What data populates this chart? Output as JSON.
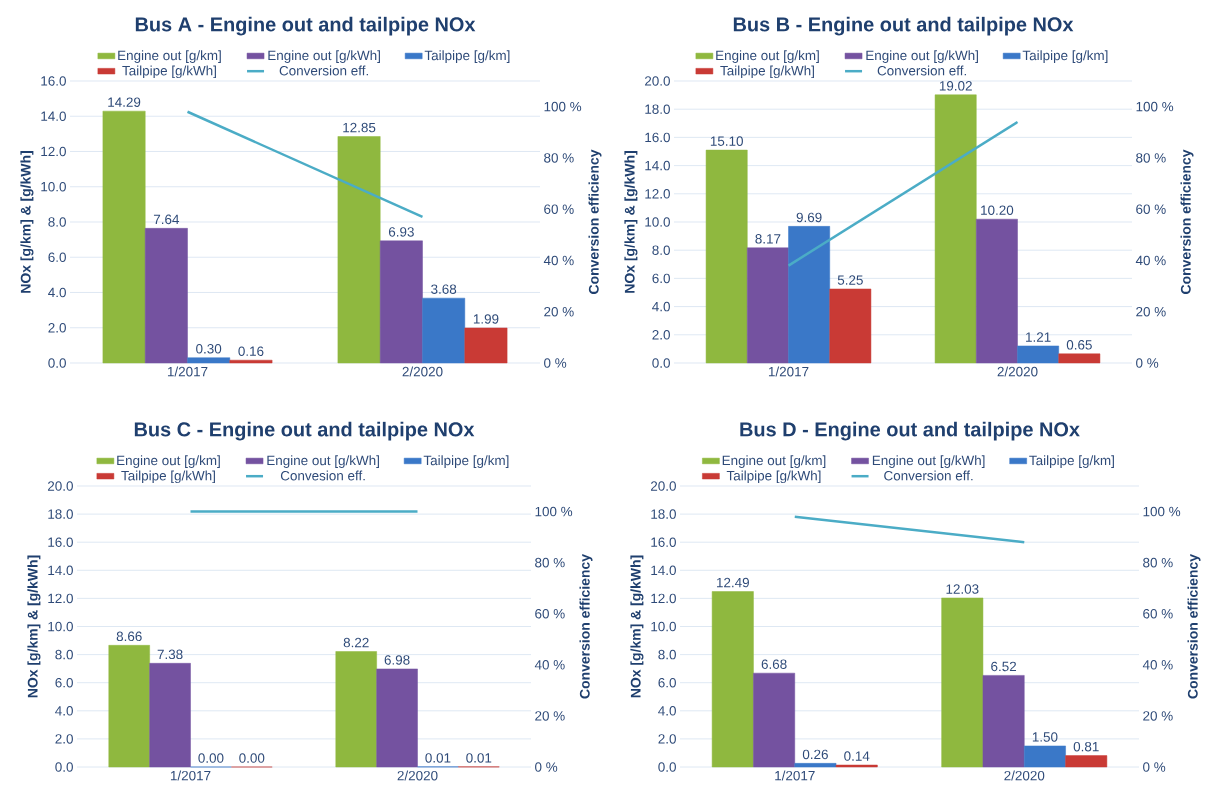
{
  "chart_data": [
    {
      "type": "bar",
      "title": "Bus A - Engine out and tailpipe NOx",
      "ylabel": "NOx [g/km] & [g/kWh]",
      "y2label": "Conversion efficiency",
      "categories": [
        "1/2017",
        "2/2020"
      ],
      "grid": "y",
      "legend": "top",
      "ylim": [
        0,
        16
      ],
      "yticks": [
        {
          "value": 0,
          "label": "0.0"
        },
        {
          "value": 2,
          "label": "2.0"
        },
        {
          "value": 4,
          "label": "4.0"
        },
        {
          "value": 6,
          "label": "6.0"
        },
        {
          "value": 8,
          "label": "8.0"
        },
        {
          "value": 10,
          "label": "10.0"
        },
        {
          "value": 12,
          "label": "12.0"
        },
        {
          "value": 14,
          "label": "14.0"
        },
        {
          "value": 16,
          "label": "16.0"
        }
      ],
      "y2lim": [
        0,
        110
      ],
      "y2ticks": [
        {
          "value": 0,
          "label": "0 %"
        },
        {
          "value": 20,
          "label": "20 %"
        },
        {
          "value": 40,
          "label": "40 %"
        },
        {
          "value": 60,
          "label": "60 %"
        },
        {
          "value": 80,
          "label": "80 %"
        },
        {
          "value": 100,
          "label": "100 %"
        }
      ],
      "series": [
        {
          "name": "Engine out [g/km]",
          "color": "#8fb83f",
          "values": [
            14.29,
            12.85
          ],
          "value_labels": [
            "14.29",
            "12.85"
          ]
        },
        {
          "name": "Engine out [g/kWh]",
          "color": "#7452a0",
          "values": [
            7.64,
            6.93
          ],
          "value_labels": [
            "7.64",
            "6.93"
          ]
        },
        {
          "name": "Tailpipe [g/km]",
          "color": "#3a78c8",
          "values": [
            0.3,
            3.68
          ],
          "value_labels": [
            "0.30",
            "3.68"
          ]
        },
        {
          "name": "Tailpipe [g/kWh]",
          "color": "#c93a35",
          "values": [
            0.16,
            1.99
          ],
          "value_labels": [
            "0.16",
            "1.99"
          ]
        },
        {
          "name": "Conversion eff.",
          "type": "line",
          "axis": "y2",
          "color": "#4bacc6",
          "values": [
            98,
            57
          ]
        }
      ]
    },
    {
      "type": "bar",
      "title": "Bus B - Engine out and tailpipe NOx",
      "ylabel": "NOx [g/km] & [g/kWh]",
      "y2label": "Conversion efficiency",
      "categories": [
        "1/2017",
        "2/2020"
      ],
      "grid": "y",
      "legend": "top",
      "ylim": [
        0,
        20
      ],
      "yticks": [
        {
          "value": 0,
          "label": "0.0"
        },
        {
          "value": 2,
          "label": "2.0"
        },
        {
          "value": 4,
          "label": "4.0"
        },
        {
          "value": 6,
          "label": "6.0"
        },
        {
          "value": 8,
          "label": "8.0"
        },
        {
          "value": 10,
          "label": "10.0"
        },
        {
          "value": 12,
          "label": "12.0"
        },
        {
          "value": 14,
          "label": "14.0"
        },
        {
          "value": 16,
          "label": "16.0"
        },
        {
          "value": 18,
          "label": "18.0"
        },
        {
          "value": 20,
          "label": "20.0"
        }
      ],
      "y2lim": [
        0,
        110
      ],
      "y2ticks": [
        {
          "value": 0,
          "label": "0 %"
        },
        {
          "value": 20,
          "label": "20 %"
        },
        {
          "value": 40,
          "label": "40 %"
        },
        {
          "value": 60,
          "label": "60 %"
        },
        {
          "value": 80,
          "label": "80 %"
        },
        {
          "value": 100,
          "label": "100 %"
        }
      ],
      "series": [
        {
          "name": "Engine out [g/km]",
          "color": "#8fb83f",
          "values": [
            15.1,
            19.02
          ],
          "value_labels": [
            "15.10",
            "19.02"
          ]
        },
        {
          "name": "Engine out [g/kWh]",
          "color": "#7452a0",
          "values": [
            8.17,
            10.2
          ],
          "value_labels": [
            "8.17",
            "10.20"
          ]
        },
        {
          "name": "Tailpipe [g/km]",
          "color": "#3a78c8",
          "values": [
            9.69,
            1.21
          ],
          "value_labels": [
            "9.69",
            "1.21"
          ]
        },
        {
          "name": "Tailpipe [g/kWh]",
          "color": "#c93a35",
          "values": [
            5.25,
            0.65
          ],
          "value_labels": [
            "5.25",
            "0.65"
          ]
        },
        {
          "name": "Conversion eff.",
          "type": "line",
          "axis": "y2",
          "color": "#4bacc6",
          "values": [
            38,
            94
          ]
        }
      ]
    },
    {
      "type": "bar",
      "title": "Bus C - Engine out and tailpipe NOx",
      "ylabel": "NOx [g/km] & [g/kWh]",
      "y2label": "Conversion efficiency",
      "categories": [
        "1/2017",
        "2/2020"
      ],
      "grid": "y",
      "legend": "top",
      "ylim": [
        0,
        20
      ],
      "yticks": [
        {
          "value": 0,
          "label": "0.0"
        },
        {
          "value": 2,
          "label": "2.0"
        },
        {
          "value": 4,
          "label": "4.0"
        },
        {
          "value": 6,
          "label": "6.0"
        },
        {
          "value": 8,
          "label": "8.0"
        },
        {
          "value": 10,
          "label": "10.0"
        },
        {
          "value": 12,
          "label": "12.0"
        },
        {
          "value": 14,
          "label": "14.0"
        },
        {
          "value": 16,
          "label": "16.0"
        },
        {
          "value": 18,
          "label": "18.0"
        },
        {
          "value": 20,
          "label": "20.0"
        }
      ],
      "y2lim": [
        0,
        110
      ],
      "y2ticks": [
        {
          "value": 0,
          "label": "0 %"
        },
        {
          "value": 20,
          "label": "20 %"
        },
        {
          "value": 40,
          "label": "40 %"
        },
        {
          "value": 60,
          "label": "60 %"
        },
        {
          "value": 80,
          "label": "80 %"
        },
        {
          "value": 100,
          "label": "100 %"
        }
      ],
      "series": [
        {
          "name": "Engine out [g/km]",
          "color": "#8fb83f",
          "values": [
            8.66,
            8.22
          ],
          "value_labels": [
            "8.66",
            "8.22"
          ]
        },
        {
          "name": "Engine out [g/kWh]",
          "color": "#7452a0",
          "values": [
            7.38,
            6.98
          ],
          "value_labels": [
            "7.38",
            "6.98"
          ]
        },
        {
          "name": "Tailpipe [g/km]",
          "color": "#3a78c8",
          "values": [
            0.0,
            0.01
          ],
          "value_labels": [
            "0.00",
            "0.01"
          ]
        },
        {
          "name": "Tailpipe [g/kWh]",
          "color": "#c93a35",
          "values": [
            0.0,
            0.01
          ],
          "value_labels": [
            "0.00",
            "0.01"
          ]
        },
        {
          "name": "Convesion eff.",
          "type": "line",
          "axis": "y2",
          "color": "#4bacc6",
          "values": [
            100,
            100
          ]
        }
      ]
    },
    {
      "type": "bar",
      "title": "Bus D - Engine out and tailpipe NOx",
      "ylabel": "NOx [g/km] & [g/kWh]",
      "y2label": "Conversion efficiency",
      "categories": [
        "1/2017",
        "2/2020"
      ],
      "grid": "y",
      "legend": "top",
      "ylim": [
        0,
        20
      ],
      "yticks": [
        {
          "value": 0,
          "label": "0.0"
        },
        {
          "value": 2,
          "label": "2.0"
        },
        {
          "value": 4,
          "label": "4.0"
        },
        {
          "value": 6,
          "label": "6.0"
        },
        {
          "value": 8,
          "label": "8.0"
        },
        {
          "value": 10,
          "label": "10.0"
        },
        {
          "value": 12,
          "label": "12.0"
        },
        {
          "value": 14,
          "label": "14.0"
        },
        {
          "value": 16,
          "label": "16.0"
        },
        {
          "value": 18,
          "label": "18.0"
        },
        {
          "value": 20,
          "label": "20.0"
        }
      ],
      "y2lim": [
        0,
        110
      ],
      "y2ticks": [
        {
          "value": 0,
          "label": "0 %"
        },
        {
          "value": 20,
          "label": "20 %"
        },
        {
          "value": 40,
          "label": "40 %"
        },
        {
          "value": 60,
          "label": "60 %"
        },
        {
          "value": 80,
          "label": "80 %"
        },
        {
          "value": 100,
          "label": "100 %"
        }
      ],
      "series": [
        {
          "name": "Engine out [g/km]",
          "color": "#8fb83f",
          "values": [
            12.49,
            12.03
          ],
          "value_labels": [
            "12.49",
            "12.03"
          ]
        },
        {
          "name": "Engine out [g/kWh]",
          "color": "#7452a0",
          "values": [
            6.68,
            6.52
          ],
          "value_labels": [
            "6.68",
            "6.52"
          ]
        },
        {
          "name": "Tailpipe [g/km]",
          "color": "#3a78c8",
          "values": [
            0.26,
            1.5
          ],
          "value_labels": [
            "0.26",
            "1.50"
          ]
        },
        {
          "name": "Tailpipe [g/kWh]",
          "color": "#c93a35",
          "values": [
            0.14,
            0.81
          ],
          "value_labels": [
            "0.14",
            "0.81"
          ]
        },
        {
          "name": "Conversion eff.",
          "type": "line",
          "axis": "y2",
          "color": "#4bacc6",
          "values": [
            98,
            88
          ]
        }
      ]
    }
  ]
}
